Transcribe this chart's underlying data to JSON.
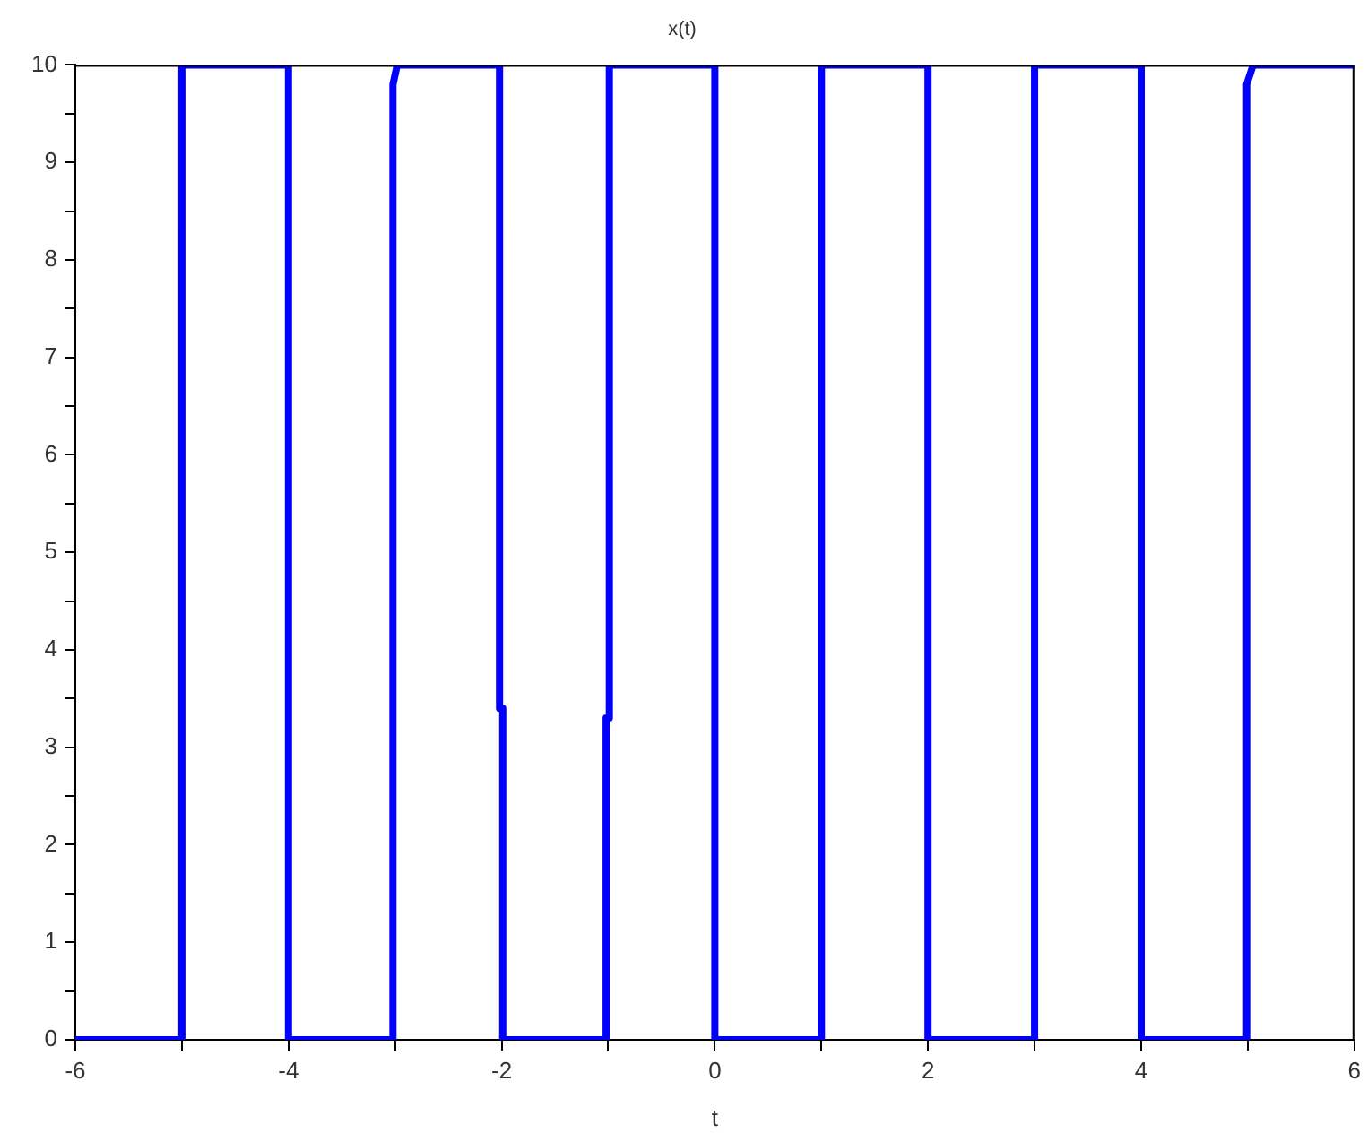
{
  "chart_data": {
    "type": "line",
    "title": "x(t)",
    "xlabel": "t",
    "x": [
      -6,
      -5,
      -5,
      -4,
      -4,
      -3.02,
      -3.02,
      -2.98,
      -2.02,
      -2.02,
      -1.99,
      -1.99,
      -1.02,
      -1.02,
      -0.99,
      -0.99,
      0,
      0,
      1,
      1,
      2,
      2,
      3,
      3,
      4,
      4,
      4.99,
      4.99,
      5.05,
      6
    ],
    "series": [
      {
        "color": "#0000ff",
        "values": [
          0,
          0,
          10,
          10,
          0,
          0,
          9.8,
          10,
          10,
          3.4,
          3.4,
          0,
          0,
          3.3,
          3.3,
          10,
          10,
          0,
          0,
          10,
          10,
          0,
          0,
          10,
          10,
          0,
          0,
          9.8,
          10,
          10
        ]
      }
    ],
    "xlim": [
      -6,
      6
    ],
    "ylim": [
      0,
      10
    ],
    "xticks": [
      -6,
      {
        "value": -5,
        "label": null
      },
      -4,
      {
        "value": -3,
        "label": null
      },
      -2,
      {
        "value": -1,
        "label": null
      },
      0,
      {
        "value": 1,
        "label": null
      },
      2,
      {
        "value": 3,
        "label": null
      },
      4,
      {
        "value": 5,
        "label": null
      },
      6
    ],
    "yticks": [
      0,
      {
        "value": 0.5,
        "label": null
      },
      1,
      {
        "value": 1.5,
        "label": null
      },
      2,
      {
        "value": 2.5,
        "label": null
      },
      3,
      {
        "value": 3.5,
        "label": null
      },
      4,
      {
        "value": 4.5,
        "label": null
      },
      5,
      {
        "value": 5.5,
        "label": null
      },
      6,
      {
        "value": 6.5,
        "label": null
      },
      7,
      {
        "value": 7.5,
        "label": null
      },
      8,
      {
        "value": 8.5,
        "label": null
      },
      9,
      {
        "value": 9.5,
        "label": null
      },
      10
    ],
    "marker": "none",
    "line_style": "solid"
  }
}
